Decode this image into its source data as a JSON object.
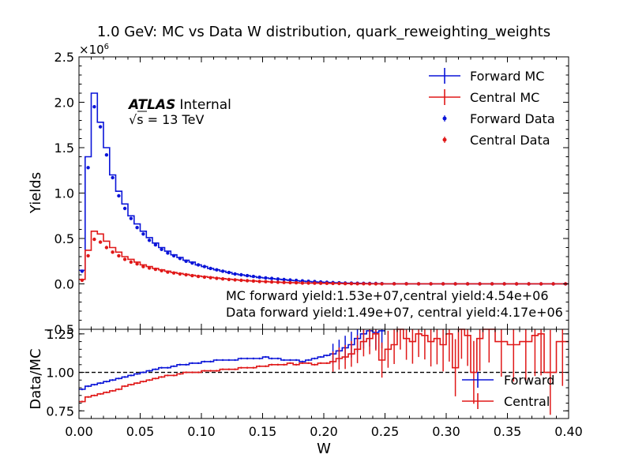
{
  "chart_data": {
    "type": "line",
    "title": "1.0 GeV: MC vs Data W distribution, quark_reweighting_weights",
    "xlabel": "W",
    "xlim": [
      0.0,
      0.4
    ],
    "x_ticks": [
      "0.00",
      "0.05",
      "0.10",
      "0.15",
      "0.20",
      "0.25",
      "0.30",
      "0.35",
      "0.40"
    ],
    "grid": false,
    "top_panel": {
      "ylabel": "Yields",
      "ylim": [
        -0.5,
        2.5
      ],
      "y_ticks": [
        "−0.5",
        "0.0",
        "0.5",
        "1.0",
        "1.5",
        "2.0",
        "2.5"
      ],
      "scale_label": "×10",
      "scale_exponent": "6",
      "atlas_label": "ATLAS",
      "atlas_status": "Internal",
      "energy_sqrt": "√s",
      "energy_label": " =  13 TeV",
      "legend_position": "top-right",
      "annotations": [
        "MC forward yield:1.53e+07,central yield:4.54e+06",
        "Data forward yield:1.49e+07, central yield:4.17e+06"
      ],
      "series": [
        {
          "name": "Forward MC",
          "style": "step",
          "color": "#0a14d8",
          "x": [
            0.0,
            0.005,
            0.01,
            0.015,
            0.02,
            0.025,
            0.03,
            0.035,
            0.04,
            0.045,
            0.05,
            0.055,
            0.06,
            0.065,
            0.07,
            0.075,
            0.08,
            0.085,
            0.09,
            0.095,
            0.1,
            0.105,
            0.11,
            0.115,
            0.12,
            0.125,
            0.13,
            0.135,
            0.14,
            0.145,
            0.15,
            0.155,
            0.16,
            0.165,
            0.17,
            0.175,
            0.18,
            0.185,
            0.19,
            0.195,
            0.2,
            0.205,
            0.21,
            0.215,
            0.22,
            0.225,
            0.23,
            0.235,
            0.24,
            0.245,
            0.25,
            0.4
          ],
          "y": [
            0.15,
            1.4,
            2.1,
            1.78,
            1.5,
            1.2,
            1.02,
            0.88,
            0.75,
            0.66,
            0.58,
            0.51,
            0.45,
            0.4,
            0.36,
            0.32,
            0.29,
            0.26,
            0.24,
            0.21,
            0.19,
            0.17,
            0.155,
            0.14,
            0.125,
            0.11,
            0.1,
            0.09,
            0.08,
            0.07,
            0.065,
            0.058,
            0.052,
            0.046,
            0.04,
            0.035,
            0.03,
            0.026,
            0.022,
            0.019,
            0.016,
            0.013,
            0.011,
            0.009,
            0.007,
            0.006,
            0.005,
            0.004,
            0.003,
            0.002,
            0.001,
            0.001
          ]
        },
        {
          "name": "Central MC",
          "style": "step",
          "color": "#e01818",
          "x": [
            0.0,
            0.005,
            0.01,
            0.015,
            0.02,
            0.025,
            0.03,
            0.035,
            0.04,
            0.045,
            0.05,
            0.055,
            0.06,
            0.065,
            0.07,
            0.075,
            0.08,
            0.085,
            0.09,
            0.095,
            0.1,
            0.105,
            0.11,
            0.115,
            0.12,
            0.125,
            0.13,
            0.135,
            0.14,
            0.145,
            0.15,
            0.155,
            0.16,
            0.165,
            0.17,
            0.175,
            0.18,
            0.185,
            0.19,
            0.195,
            0.2,
            0.205,
            0.21,
            0.215,
            0.22,
            0.225,
            0.23,
            0.235,
            0.24,
            0.245,
            0.25,
            0.4
          ],
          "y": [
            0.05,
            0.37,
            0.58,
            0.55,
            0.47,
            0.4,
            0.35,
            0.3,
            0.27,
            0.24,
            0.21,
            0.19,
            0.17,
            0.155,
            0.14,
            0.125,
            0.115,
            0.105,
            0.095,
            0.087,
            0.08,
            0.072,
            0.065,
            0.058,
            0.052,
            0.046,
            0.041,
            0.036,
            0.032,
            0.028,
            0.025,
            0.022,
            0.019,
            0.016,
            0.014,
            0.012,
            0.01,
            0.009,
            0.008,
            0.007,
            0.006,
            0.005,
            0.004,
            0.003,
            0.003,
            0.002,
            0.002,
            0.001,
            0.001,
            0.001,
            0.001,
            0.001
          ]
        },
        {
          "name": "Forward Data",
          "style": "points",
          "color": "#0a14d8",
          "x": [
            0.0025,
            0.0075,
            0.0125,
            0.0175,
            0.0225,
            0.0275,
            0.0325,
            0.0375,
            0.0425,
            0.0475,
            0.0525,
            0.0575,
            0.0625,
            0.0675,
            0.0725,
            0.0775,
            0.0825,
            0.0875,
            0.0925,
            0.0975,
            0.1025,
            0.1075,
            0.1125,
            0.1175,
            0.1225,
            0.1275,
            0.1325,
            0.1375,
            0.1425,
            0.1475,
            0.1525,
            0.1575,
            0.1625,
            0.1675,
            0.1725,
            0.1775,
            0.1825,
            0.1875,
            0.1925,
            0.1975,
            0.2025,
            0.2075,
            0.2125,
            0.2175,
            0.2225,
            0.2275,
            0.2325,
            0.2375,
            0.2425,
            0.2475,
            0.2575,
            0.2675,
            0.2775,
            0.2875,
            0.2975,
            0.3075,
            0.3175,
            0.3275,
            0.3375,
            0.3475,
            0.3575,
            0.3675,
            0.3775,
            0.3875,
            0.3975
          ],
          "y": [
            0.14,
            1.28,
            1.95,
            1.73,
            1.42,
            1.17,
            0.97,
            0.83,
            0.72,
            0.62,
            0.55,
            0.48,
            0.43,
            0.38,
            0.34,
            0.31,
            0.28,
            0.25,
            0.23,
            0.21,
            0.19,
            0.17,
            0.155,
            0.14,
            0.125,
            0.11,
            0.1,
            0.09,
            0.082,
            0.073,
            0.066,
            0.06,
            0.054,
            0.048,
            0.043,
            0.038,
            0.033,
            0.029,
            0.025,
            0.021,
            0.018,
            0.015,
            0.012,
            0.01,
            0.008,
            0.007,
            0.006,
            0.005,
            0.004,
            0.003,
            0.002,
            0.002,
            0.001,
            0.001,
            0.001,
            0.001,
            0.0005,
            0.0005,
            0.0005,
            0.0005,
            0.0003,
            0.0003,
            0.0002,
            0.0002,
            0.0001
          ]
        },
        {
          "name": "Central Data",
          "style": "points",
          "color": "#e01818",
          "x": [
            0.0025,
            0.0075,
            0.0125,
            0.0175,
            0.0225,
            0.0275,
            0.0325,
            0.0375,
            0.0425,
            0.0475,
            0.0525,
            0.0575,
            0.0625,
            0.0675,
            0.0725,
            0.0775,
            0.0825,
            0.0875,
            0.0925,
            0.0975,
            0.1025,
            0.1075,
            0.1125,
            0.1175,
            0.1225,
            0.1275,
            0.1325,
            0.1375,
            0.1425,
            0.1475,
            0.1525,
            0.1575,
            0.1625,
            0.1675,
            0.1725,
            0.1775,
            0.1825,
            0.1875,
            0.1925,
            0.1975,
            0.2025,
            0.2075,
            0.2125,
            0.2175,
            0.2225,
            0.2275,
            0.2325,
            0.2375,
            0.2425,
            0.2475,
            0.2575,
            0.2675,
            0.2775,
            0.2875,
            0.2975,
            0.3075,
            0.3175,
            0.3275,
            0.3375,
            0.3475,
            0.3575,
            0.3675,
            0.3775,
            0.3875,
            0.3975
          ],
          "y": [
            0.04,
            0.31,
            0.49,
            0.46,
            0.4,
            0.35,
            0.31,
            0.27,
            0.24,
            0.22,
            0.19,
            0.175,
            0.16,
            0.145,
            0.13,
            0.12,
            0.11,
            0.1,
            0.09,
            0.082,
            0.075,
            0.068,
            0.061,
            0.055,
            0.049,
            0.044,
            0.039,
            0.035,
            0.031,
            0.027,
            0.024,
            0.021,
            0.018,
            0.016,
            0.014,
            0.012,
            0.01,
            0.009,
            0.008,
            0.007,
            0.006,
            0.005,
            0.004,
            0.003,
            0.003,
            0.002,
            0.002,
            0.001,
            0.001,
            0.001,
            0.001,
            0.0008,
            0.0006,
            0.0005,
            0.0004,
            0.0003,
            0.0003,
            0.0002,
            0.0002,
            0.0002,
            0.0001,
            0.0001,
            0.0001,
            0.0001,
            0.0001
          ]
        }
      ]
    },
    "ratio_panel": {
      "ylabel": "Data/MC",
      "ylim": [
        0.7,
        1.28
      ],
      "y_ticks": [
        "0.75",
        "1.00",
        "1.25"
      ],
      "reference_line": 1.0,
      "legend_position": "bottom-right",
      "series": [
        {
          "name": "Forward",
          "color": "#0a14d8",
          "x": [
            0.0,
            0.005,
            0.01,
            0.015,
            0.02,
            0.025,
            0.03,
            0.035,
            0.04,
            0.045,
            0.05,
            0.055,
            0.06,
            0.065,
            0.07,
            0.075,
            0.08,
            0.085,
            0.09,
            0.095,
            0.1,
            0.105,
            0.11,
            0.115,
            0.12,
            0.125,
            0.13,
            0.135,
            0.14,
            0.145,
            0.15,
            0.155,
            0.16,
            0.165,
            0.17,
            0.175,
            0.18,
            0.185,
            0.19,
            0.195,
            0.2,
            0.205,
            0.21,
            0.215,
            0.22,
            0.225,
            0.23,
            0.235,
            0.24,
            0.245,
            0.25
          ],
          "y": [
            0.89,
            0.91,
            0.92,
            0.93,
            0.94,
            0.95,
            0.96,
            0.97,
            0.98,
            0.99,
            1.0,
            1.01,
            1.02,
            1.03,
            1.03,
            1.04,
            1.05,
            1.05,
            1.06,
            1.06,
            1.07,
            1.07,
            1.08,
            1.08,
            1.08,
            1.08,
            1.09,
            1.09,
            1.09,
            1.09,
            1.1,
            1.09,
            1.09,
            1.08,
            1.08,
            1.08,
            1.07,
            1.08,
            1.09,
            1.1,
            1.11,
            1.12,
            1.14,
            1.16,
            1.18,
            1.22,
            1.25,
            1.27,
            1.26,
            1.27,
            1.27
          ]
        },
        {
          "name": "Central",
          "color": "#e01818",
          "x": [
            0.0,
            0.005,
            0.01,
            0.015,
            0.02,
            0.025,
            0.03,
            0.035,
            0.04,
            0.045,
            0.05,
            0.055,
            0.06,
            0.065,
            0.07,
            0.075,
            0.08,
            0.085,
            0.09,
            0.095,
            0.1,
            0.105,
            0.11,
            0.115,
            0.12,
            0.125,
            0.13,
            0.135,
            0.14,
            0.145,
            0.15,
            0.155,
            0.16,
            0.165,
            0.17,
            0.175,
            0.18,
            0.185,
            0.19,
            0.195,
            0.2,
            0.205,
            0.21,
            0.215,
            0.22,
            0.225,
            0.23,
            0.235,
            0.24,
            0.245,
            0.25,
            0.255,
            0.26,
            0.265,
            0.27,
            0.275,
            0.28,
            0.285,
            0.29,
            0.295,
            0.3,
            0.305,
            0.31,
            0.315,
            0.32,
            0.325,
            0.33,
            0.34,
            0.35,
            0.36,
            0.37,
            0.375,
            0.38,
            0.39,
            0.4
          ],
          "y": [
            0.81,
            0.84,
            0.85,
            0.86,
            0.87,
            0.88,
            0.89,
            0.91,
            0.92,
            0.93,
            0.94,
            0.95,
            0.96,
            0.97,
            0.98,
            0.98,
            0.99,
            1.0,
            1.0,
            1.0,
            1.01,
            1.01,
            1.01,
            1.02,
            1.02,
            1.02,
            1.03,
            1.03,
            1.03,
            1.04,
            1.04,
            1.05,
            1.05,
            1.05,
            1.06,
            1.05,
            1.06,
            1.06,
            1.05,
            1.06,
            1.06,
            1.07,
            1.09,
            1.1,
            1.12,
            1.15,
            1.2,
            1.22,
            1.25,
            1.08,
            1.15,
            1.18,
            1.28,
            1.22,
            1.2,
            1.25,
            1.24,
            1.2,
            1.22,
            1.18,
            1.25,
            1.03,
            1.28,
            1.24,
            1.0,
            1.22,
            1.28,
            1.2,
            1.18,
            1.2,
            1.24,
            1.25,
            1.0,
            1.2,
            0.95
          ]
        }
      ]
    }
  }
}
